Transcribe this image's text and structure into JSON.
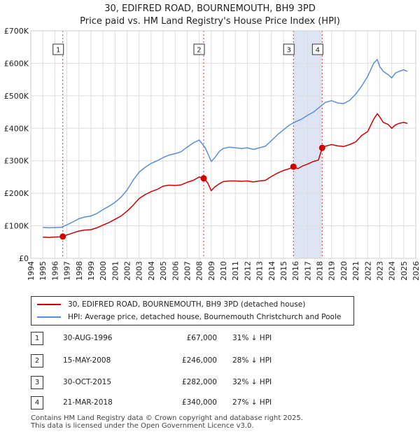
{
  "header": {
    "title_line1": "30, EDIFRED ROAD, BOURNEMOUTH, BH9 3PD",
    "title_line2": "Price paid vs. HM Land Registry's House Price Index (HPI)"
  },
  "chart_data": {
    "type": "line",
    "title": "Price paid vs. HM Land Registry's House Price Index (HPI)",
    "xlabel": "",
    "ylabel": "",
    "xlim": [
      1994,
      2026
    ],
    "ylim": [
      0,
      700000
    ],
    "y_ticks": [
      0,
      100000,
      200000,
      300000,
      400000,
      500000,
      600000,
      700000
    ],
    "y_tick_labels": [
      "£0",
      "£100K",
      "£200K",
      "£300K",
      "£400K",
      "£500K",
      "£600K",
      "£700K"
    ],
    "x_ticks": [
      "1994",
      "1995",
      "1996",
      "1997",
      "1998",
      "1999",
      "2000",
      "2001",
      "2002",
      "2003",
      "2004",
      "2005",
      "2006",
      "2007",
      "2008",
      "2009",
      "2010",
      "2011",
      "2012",
      "2013",
      "2014",
      "2015",
      "2016",
      "2017",
      "2018",
      "2019",
      "2020",
      "2021",
      "2022",
      "2023",
      "2024",
      "2025",
      "2026"
    ],
    "grid": true,
    "colors": {
      "property": "#cc0000",
      "hpi": "#5b8ed6",
      "shade": "#dde5f5",
      "grid": "#dddddd"
    },
    "series": [
      {
        "name": "30, EDIFRED ROAD, BOURNEMOUTH, BH9 3PD (detached house)",
        "color": "#cc0000",
        "x": [
          1995.0,
          1995.5,
          1996.0,
          1996.4,
          1996.66,
          1997.0,
          1997.5,
          1998.0,
          1998.5,
          1999.0,
          1999.5,
          2000.0,
          2000.5,
          2001.0,
          2001.5,
          2002.0,
          2002.5,
          2003.0,
          2003.5,
          2004.0,
          2004.5,
          2005.0,
          2005.5,
          2006.0,
          2006.5,
          2007.0,
          2007.5,
          2008.0,
          2008.37,
          2008.7,
          2009.0,
          2009.3,
          2009.7,
          2010.0,
          2010.5,
          2011.0,
          2011.5,
          2012.0,
          2012.5,
          2013.0,
          2013.5,
          2014.0,
          2014.5,
          2015.0,
          2015.5,
          2015.83,
          2016.2,
          2016.6,
          2017.0,
          2017.5,
          2017.9,
          2018.22,
          2018.5,
          2019.0,
          2019.5,
          2020.0,
          2020.5,
          2021.0,
          2021.5,
          2022.0,
          2022.5,
          2022.8,
          2023.0,
          2023.3,
          2023.7,
          2024.0,
          2024.3,
          2024.6,
          2025.0,
          2025.3
        ],
        "values": [
          65000,
          64000,
          65500,
          66000,
          67000,
          72000,
          78000,
          84000,
          87000,
          88000,
          94000,
          102000,
          110000,
          120000,
          130000,
          145000,
          163000,
          184000,
          196000,
          205000,
          212000,
          222000,
          225000,
          224000,
          226000,
          234000,
          240000,
          250000,
          246000,
          232000,
          208000,
          220000,
          230000,
          236000,
          238000,
          238000,
          237000,
          238000,
          235000,
          238000,
          240000,
          252000,
          262000,
          270000,
          276000,
          282000,
          276000,
          284000,
          290000,
          298000,
          302000,
          340000,
          345000,
          350000,
          346000,
          344000,
          350000,
          358000,
          378000,
          390000,
          428000,
          445000,
          435000,
          418000,
          412000,
          400000,
          410000,
          415000,
          418000,
          415000
        ]
      },
      {
        "name": "HPI: Average price, detached house, Bournemouth Christchurch and Poole",
        "color": "#5b8ed6",
        "x": [
          1995.0,
          1995.5,
          1996.0,
          1996.5,
          1997.0,
          1997.5,
          1998.0,
          1998.5,
          1999.0,
          1999.5,
          2000.0,
          2000.5,
          2001.0,
          2001.5,
          2002.0,
          2002.5,
          2003.0,
          2003.5,
          2004.0,
          2004.5,
          2005.0,
          2005.5,
          2006.0,
          2006.5,
          2007.0,
          2007.5,
          2008.0,
          2008.5,
          2009.0,
          2009.3,
          2009.7,
          2010.0,
          2010.5,
          2011.0,
          2011.5,
          2012.0,
          2012.5,
          2013.0,
          2013.5,
          2014.0,
          2014.5,
          2015.0,
          2015.5,
          2016.0,
          2016.5,
          2017.0,
          2017.5,
          2018.0,
          2018.5,
          2019.0,
          2019.5,
          2020.0,
          2020.5,
          2021.0,
          2021.5,
          2022.0,
          2022.5,
          2022.8,
          2023.0,
          2023.3,
          2023.7,
          2024.0,
          2024.3,
          2024.6,
          2025.0,
          2025.3
        ],
        "values": [
          95000,
          94000,
          94500,
          95000,
          103000,
          112000,
          122000,
          127000,
          130000,
          138000,
          150000,
          160000,
          172000,
          188000,
          210000,
          240000,
          265000,
          280000,
          292000,
          300000,
          310000,
          318000,
          322000,
          328000,
          342000,
          355000,
          364000,
          340000,
          298000,
          310000,
          330000,
          338000,
          342000,
          340000,
          338000,
          340000,
          335000,
          340000,
          345000,
          362000,
          380000,
          395000,
          410000,
          420000,
          428000,
          440000,
          450000,
          465000,
          480000,
          485000,
          478000,
          476000,
          486000,
          505000,
          530000,
          560000,
          600000,
          612000,
          590000,
          575000,
          565000,
          555000,
          570000,
          575000,
          580000,
          575000
        ]
      }
    ],
    "shaded_regions": [
      [
        2015.83,
        2018.22
      ]
    ],
    "markers": [
      {
        "label": "1",
        "x": 1996.66,
        "y": 67000
      },
      {
        "label": "2",
        "x": 2008.37,
        "y": 246000
      },
      {
        "label": "3",
        "x": 2015.83,
        "y": 282000
      },
      {
        "label": "4",
        "x": 2018.22,
        "y": 340000
      }
    ]
  },
  "legend": {
    "property_label": "30, EDIFRED ROAD, BOURNEMOUTH, BH9 3PD (detached house)",
    "hpi_label": "HPI: Average price, detached house, Bournemouth Christchurch and Poole"
  },
  "transactions": [
    {
      "num": "1",
      "date": "30-AUG-1996",
      "price": "£67,000",
      "hpi": "31% ↓ HPI"
    },
    {
      "num": "2",
      "date": "15-MAY-2008",
      "price": "£246,000",
      "hpi": "28% ↓ HPI"
    },
    {
      "num": "3",
      "date": "30-OCT-2015",
      "price": "£282,000",
      "hpi": "32% ↓ HPI"
    },
    {
      "num": "4",
      "date": "21-MAR-2018",
      "price": "£340,000",
      "hpi": "27% ↓ HPI"
    }
  ],
  "footer": {
    "line1": "Contains HM Land Registry data © Crown copyright and database right 2025.",
    "line2": "This data is licensed under the Open Government Licence v3.0."
  }
}
